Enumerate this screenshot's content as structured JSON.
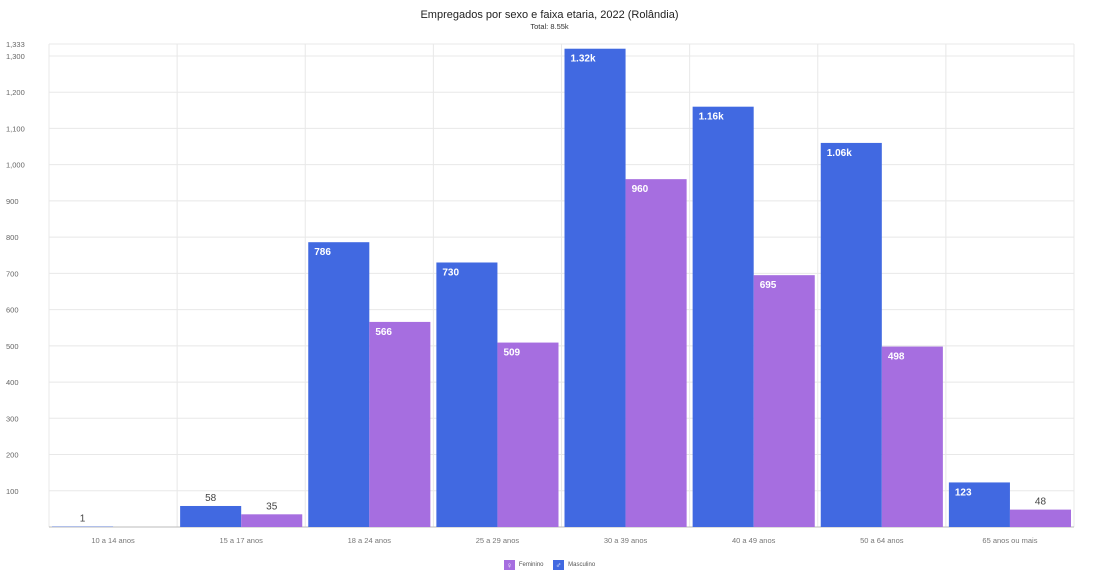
{
  "chart_data": {
    "type": "bar",
    "title": "Empregados por sexo e faixa etaria, 2022 (Rolândia)",
    "subtitle": "Total: 8.55k",
    "categories": [
      "10 a 14 anos",
      "15 a 17 anos",
      "18 a 24 anos",
      "25 a 29 anos",
      "30 a 39 anos",
      "40 a 49 anos",
      "50 a 64 anos",
      "65 anos ou mais"
    ],
    "series": [
      {
        "name": "Masculino",
        "color": "#4169e1",
        "values": [
          1,
          58,
          786,
          730,
          1320,
          1160,
          1060,
          123
        ],
        "labels": [
          "1",
          "58",
          "786",
          "730",
          "1.32k",
          "1.16k",
          "1.06k",
          "123"
        ]
      },
      {
        "name": "Feminino",
        "color": "#a66ee0",
        "values": [
          null,
          35,
          566,
          509,
          960,
          695,
          498,
          48
        ],
        "labels": [
          "",
          "35",
          "566",
          "509",
          "960",
          "695",
          "498",
          "48"
        ]
      }
    ],
    "yticks": [
      100,
      200,
      300,
      400,
      500,
      600,
      700,
      800,
      900,
      1000,
      1100,
      1200,
      1300,
      1333
    ],
    "ytick_labels": [
      "100",
      "200",
      "300",
      "400",
      "500",
      "600",
      "700",
      "800",
      "900",
      "1,000",
      "1,100",
      "1,200",
      "1,300",
      "1,333"
    ],
    "ylim": [
      0,
      1333
    ],
    "grid": true,
    "legend": "bottom-center"
  },
  "legend_items": [
    {
      "name": "Feminino",
      "color": "#a66ee0",
      "icon": "female-symbol-icon",
      "glyph": "♀"
    },
    {
      "name": "Masculino",
      "color": "#4169e1",
      "icon": "male-symbol-icon",
      "glyph": "♂"
    }
  ]
}
